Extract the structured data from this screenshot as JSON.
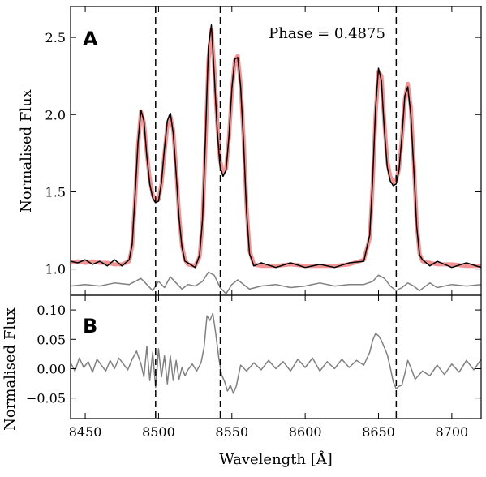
{
  "chart_data": [
    {
      "panel": "A",
      "type": "line",
      "annotation": "Phase = 0.4875",
      "ylabel": "Normalised Flux",
      "xlim": [
        8440,
        8720
      ],
      "ylim": [
        0.83,
        2.7
      ],
      "yticks": [
        1.0,
        1.5,
        2.0,
        2.5
      ],
      "ytick_labels": [
        "1.0",
        "1.5",
        "2.0",
        "2.5"
      ],
      "xticks": [
        8450,
        8500,
        8550,
        8600,
        8650,
        8700
      ],
      "vlines": [
        8498.0,
        8542.1,
        8662.1
      ],
      "series": [
        {
          "color": "#f08080",
          "x": [
            8440,
            8445,
            8450,
            8455,
            8460,
            8465,
            8470,
            8475,
            8480,
            8482,
            8484,
            8486,
            8488,
            8490,
            8492,
            8494,
            8496,
            8498,
            8500,
            8502,
            8504,
            8506,
            8508,
            8510,
            8512,
            8514,
            8516,
            8518,
            8520,
            8525,
            8528,
            8530,
            8532,
            8534,
            8536,
            8538,
            8540,
            8542,
            8544,
            8546,
            8548,
            8550,
            8552,
            8554,
            8556,
            8558,
            8560,
            8562,
            8565,
            8570,
            8580,
            8590,
            8600,
            8610,
            8620,
            8630,
            8640,
            8644,
            8646,
            8648,
            8650,
            8652,
            8654,
            8656,
            8658,
            8660,
            8662,
            8664,
            8666,
            8668,
            8670,
            8672,
            8674,
            8676,
            8678,
            8680,
            8685,
            8690,
            8700,
            8710,
            8720
          ],
          "y": [
            1.04,
            1.05,
            1.04,
            1.05,
            1.04,
            1.04,
            1.03,
            1.03,
            1.05,
            1.15,
            1.45,
            1.8,
            2.02,
            1.95,
            1.75,
            1.58,
            1.48,
            1.44,
            1.45,
            1.55,
            1.75,
            1.93,
            1.99,
            1.9,
            1.65,
            1.35,
            1.15,
            1.06,
            1.03,
            1.02,
            1.08,
            1.3,
            1.8,
            2.35,
            2.55,
            2.3,
            1.95,
            1.7,
            1.62,
            1.65,
            1.85,
            2.15,
            2.35,
            2.38,
            2.2,
            1.85,
            1.4,
            1.12,
            1.03,
            1.02,
            1.02,
            1.03,
            1.02,
            1.02,
            1.02,
            1.03,
            1.06,
            1.2,
            1.55,
            2.0,
            2.28,
            2.25,
            1.95,
            1.7,
            1.6,
            1.56,
            1.57,
            1.65,
            1.85,
            2.1,
            2.2,
            2.05,
            1.7,
            1.3,
            1.1,
            1.05,
            1.04,
            1.03,
            1.03,
            1.02,
            1.02
          ]
        },
        {
          "color": "#000000",
          "x": [
            8440,
            8445,
            8450,
            8455,
            8460,
            8465,
            8470,
            8475,
            8480,
            8482,
            8484,
            8486,
            8488,
            8490,
            8492,
            8494,
            8496,
            8498,
            8500,
            8502,
            8504,
            8506,
            8508,
            8510,
            8512,
            8514,
            8516,
            8518,
            8520,
            8525,
            8528,
            8530,
            8532,
            8534,
            8536,
            8538,
            8540,
            8542,
            8544,
            8546,
            8548,
            8550,
            8552,
            8554,
            8556,
            8558,
            8560,
            8562,
            8565,
            8570,
            8580,
            8590,
            8600,
            8610,
            8620,
            8630,
            8640,
            8644,
            8646,
            8648,
            8650,
            8652,
            8654,
            8656,
            8658,
            8660,
            8662,
            8664,
            8666,
            8668,
            8670,
            8672,
            8674,
            8676,
            8678,
            8680,
            8685,
            8690,
            8700,
            8710,
            8720
          ],
          "y": [
            1.05,
            1.04,
            1.06,
            1.03,
            1.05,
            1.02,
            1.06,
            1.02,
            1.06,
            1.16,
            1.48,
            1.82,
            2.03,
            1.96,
            1.73,
            1.55,
            1.46,
            1.43,
            1.44,
            1.56,
            1.78,
            1.96,
            2.01,
            1.88,
            1.62,
            1.33,
            1.14,
            1.05,
            1.04,
            1.01,
            1.09,
            1.32,
            1.86,
            2.44,
            2.58,
            2.26,
            1.9,
            1.66,
            1.6,
            1.64,
            1.86,
            2.17,
            2.36,
            2.37,
            2.18,
            1.82,
            1.37,
            1.1,
            1.02,
            1.04,
            1.01,
            1.04,
            1.01,
            1.03,
            1.01,
            1.04,
            1.05,
            1.22,
            1.58,
            2.04,
            2.3,
            2.22,
            1.9,
            1.66,
            1.57,
            1.54,
            1.55,
            1.64,
            1.86,
            2.12,
            2.18,
            2.0,
            1.66,
            1.28,
            1.09,
            1.06,
            1.02,
            1.05,
            1.01,
            1.04,
            1.01
          ]
        },
        {
          "color": "#808080",
          "x": [
            8440,
            8450,
            8460,
            8470,
            8480,
            8484,
            8488,
            8492,
            8496,
            8500,
            8504,
            8508,
            8512,
            8516,
            8520,
            8525,
            8530,
            8534,
            8538,
            8542,
            8546,
            8550,
            8554,
            8558,
            8562,
            8570,
            8580,
            8590,
            8600,
            8610,
            8620,
            8630,
            8640,
            8646,
            8650,
            8654,
            8658,
            8662,
            8666,
            8670,
            8674,
            8678,
            8685,
            8690,
            8700,
            8710,
            8720
          ],
          "y": [
            0.89,
            0.9,
            0.89,
            0.91,
            0.9,
            0.92,
            0.94,
            0.9,
            0.86,
            0.92,
            0.88,
            0.95,
            0.91,
            0.87,
            0.9,
            0.89,
            0.92,
            0.98,
            0.96,
            0.88,
            0.84,
            0.9,
            0.93,
            0.9,
            0.87,
            0.89,
            0.9,
            0.88,
            0.89,
            0.91,
            0.89,
            0.9,
            0.9,
            0.92,
            0.96,
            0.94,
            0.89,
            0.86,
            0.88,
            0.91,
            0.89,
            0.86,
            0.91,
            0.88,
            0.9,
            0.89,
            0.9
          ]
        }
      ]
    },
    {
      "panel": "B",
      "type": "line",
      "xlabel": "Wavelength [Å]",
      "ylabel": "Normalised Flux",
      "xlim": [
        8440,
        8720
      ],
      "ylim": [
        -0.085,
        0.125
      ],
      "yticks": [
        -0.05,
        0.0,
        0.05,
        0.1
      ],
      "ytick_labels": [
        "−0.05",
        "0.00",
        "0.05",
        "0.10"
      ],
      "xticks": [
        8450,
        8500,
        8550,
        8600,
        8650,
        8700
      ],
      "xtick_labels": [
        "8450",
        "8500",
        "8550",
        "8600",
        "8650",
        "8700"
      ],
      "vlines": [
        8498.0,
        8542.1,
        8662.1
      ],
      "series": [
        {
          "color": "#808080",
          "x": [
            8440,
            8443,
            8446,
            8449,
            8452,
            8455,
            8458,
            8461,
            8464,
            8467,
            8470,
            8473,
            8476,
            8479,
            8482,
            8485,
            8488,
            8490,
            8492,
            8494,
            8496,
            8498,
            8500,
            8502,
            8504,
            8506,
            8508,
            8510,
            8512,
            8514,
            8516,
            8518,
            8520,
            8523,
            8526,
            8529,
            8531,
            8533,
            8535,
            8537,
            8539,
            8541,
            8543,
            8545,
            8547,
            8549,
            8551,
            8553,
            8556,
            8560,
            8565,
            8570,
            8575,
            8580,
            8585,
            8590,
            8595,
            8600,
            8605,
            8610,
            8615,
            8620,
            8625,
            8630,
            8635,
            8640,
            8644,
            8646,
            8648,
            8650,
            8652,
            8654,
            8656,
            8658,
            8660,
            8662,
            8664,
            8666,
            8668,
            8670,
            8672,
            8675,
            8680,
            8685,
            8690,
            8695,
            8700,
            8705,
            8710,
            8715,
            8720
          ],
          "y": [
            0.01,
            -0.004,
            0.018,
            0.002,
            0.012,
            -0.006,
            0.016,
            0.006,
            -0.004,
            0.014,
            0.0,
            0.018,
            0.008,
            -0.002,
            0.016,
            0.03,
            0.008,
            -0.014,
            0.038,
            -0.02,
            0.028,
            -0.032,
            0.034,
            -0.014,
            0.022,
            -0.026,
            0.022,
            -0.02,
            0.014,
            -0.018,
            0.002,
            -0.012,
            -0.002,
            0.008,
            -0.004,
            0.01,
            0.036,
            0.09,
            0.082,
            0.094,
            0.06,
            0.02,
            -0.01,
            -0.022,
            -0.038,
            -0.028,
            -0.042,
            -0.03,
            0.006,
            -0.004,
            0.01,
            -0.002,
            0.014,
            0.0,
            0.012,
            -0.004,
            0.016,
            0.002,
            0.018,
            -0.004,
            0.012,
            0.0,
            0.016,
            0.002,
            0.014,
            0.006,
            0.028,
            0.048,
            0.06,
            0.056,
            0.048,
            0.036,
            0.024,
            0.002,
            -0.022,
            -0.034,
            -0.03,
            -0.028,
            -0.008,
            0.014,
            0.002,
            -0.018,
            -0.004,
            -0.012,
            0.006,
            -0.01,
            0.008,
            -0.006,
            0.014,
            -0.002,
            0.016
          ]
        }
      ]
    }
  ]
}
